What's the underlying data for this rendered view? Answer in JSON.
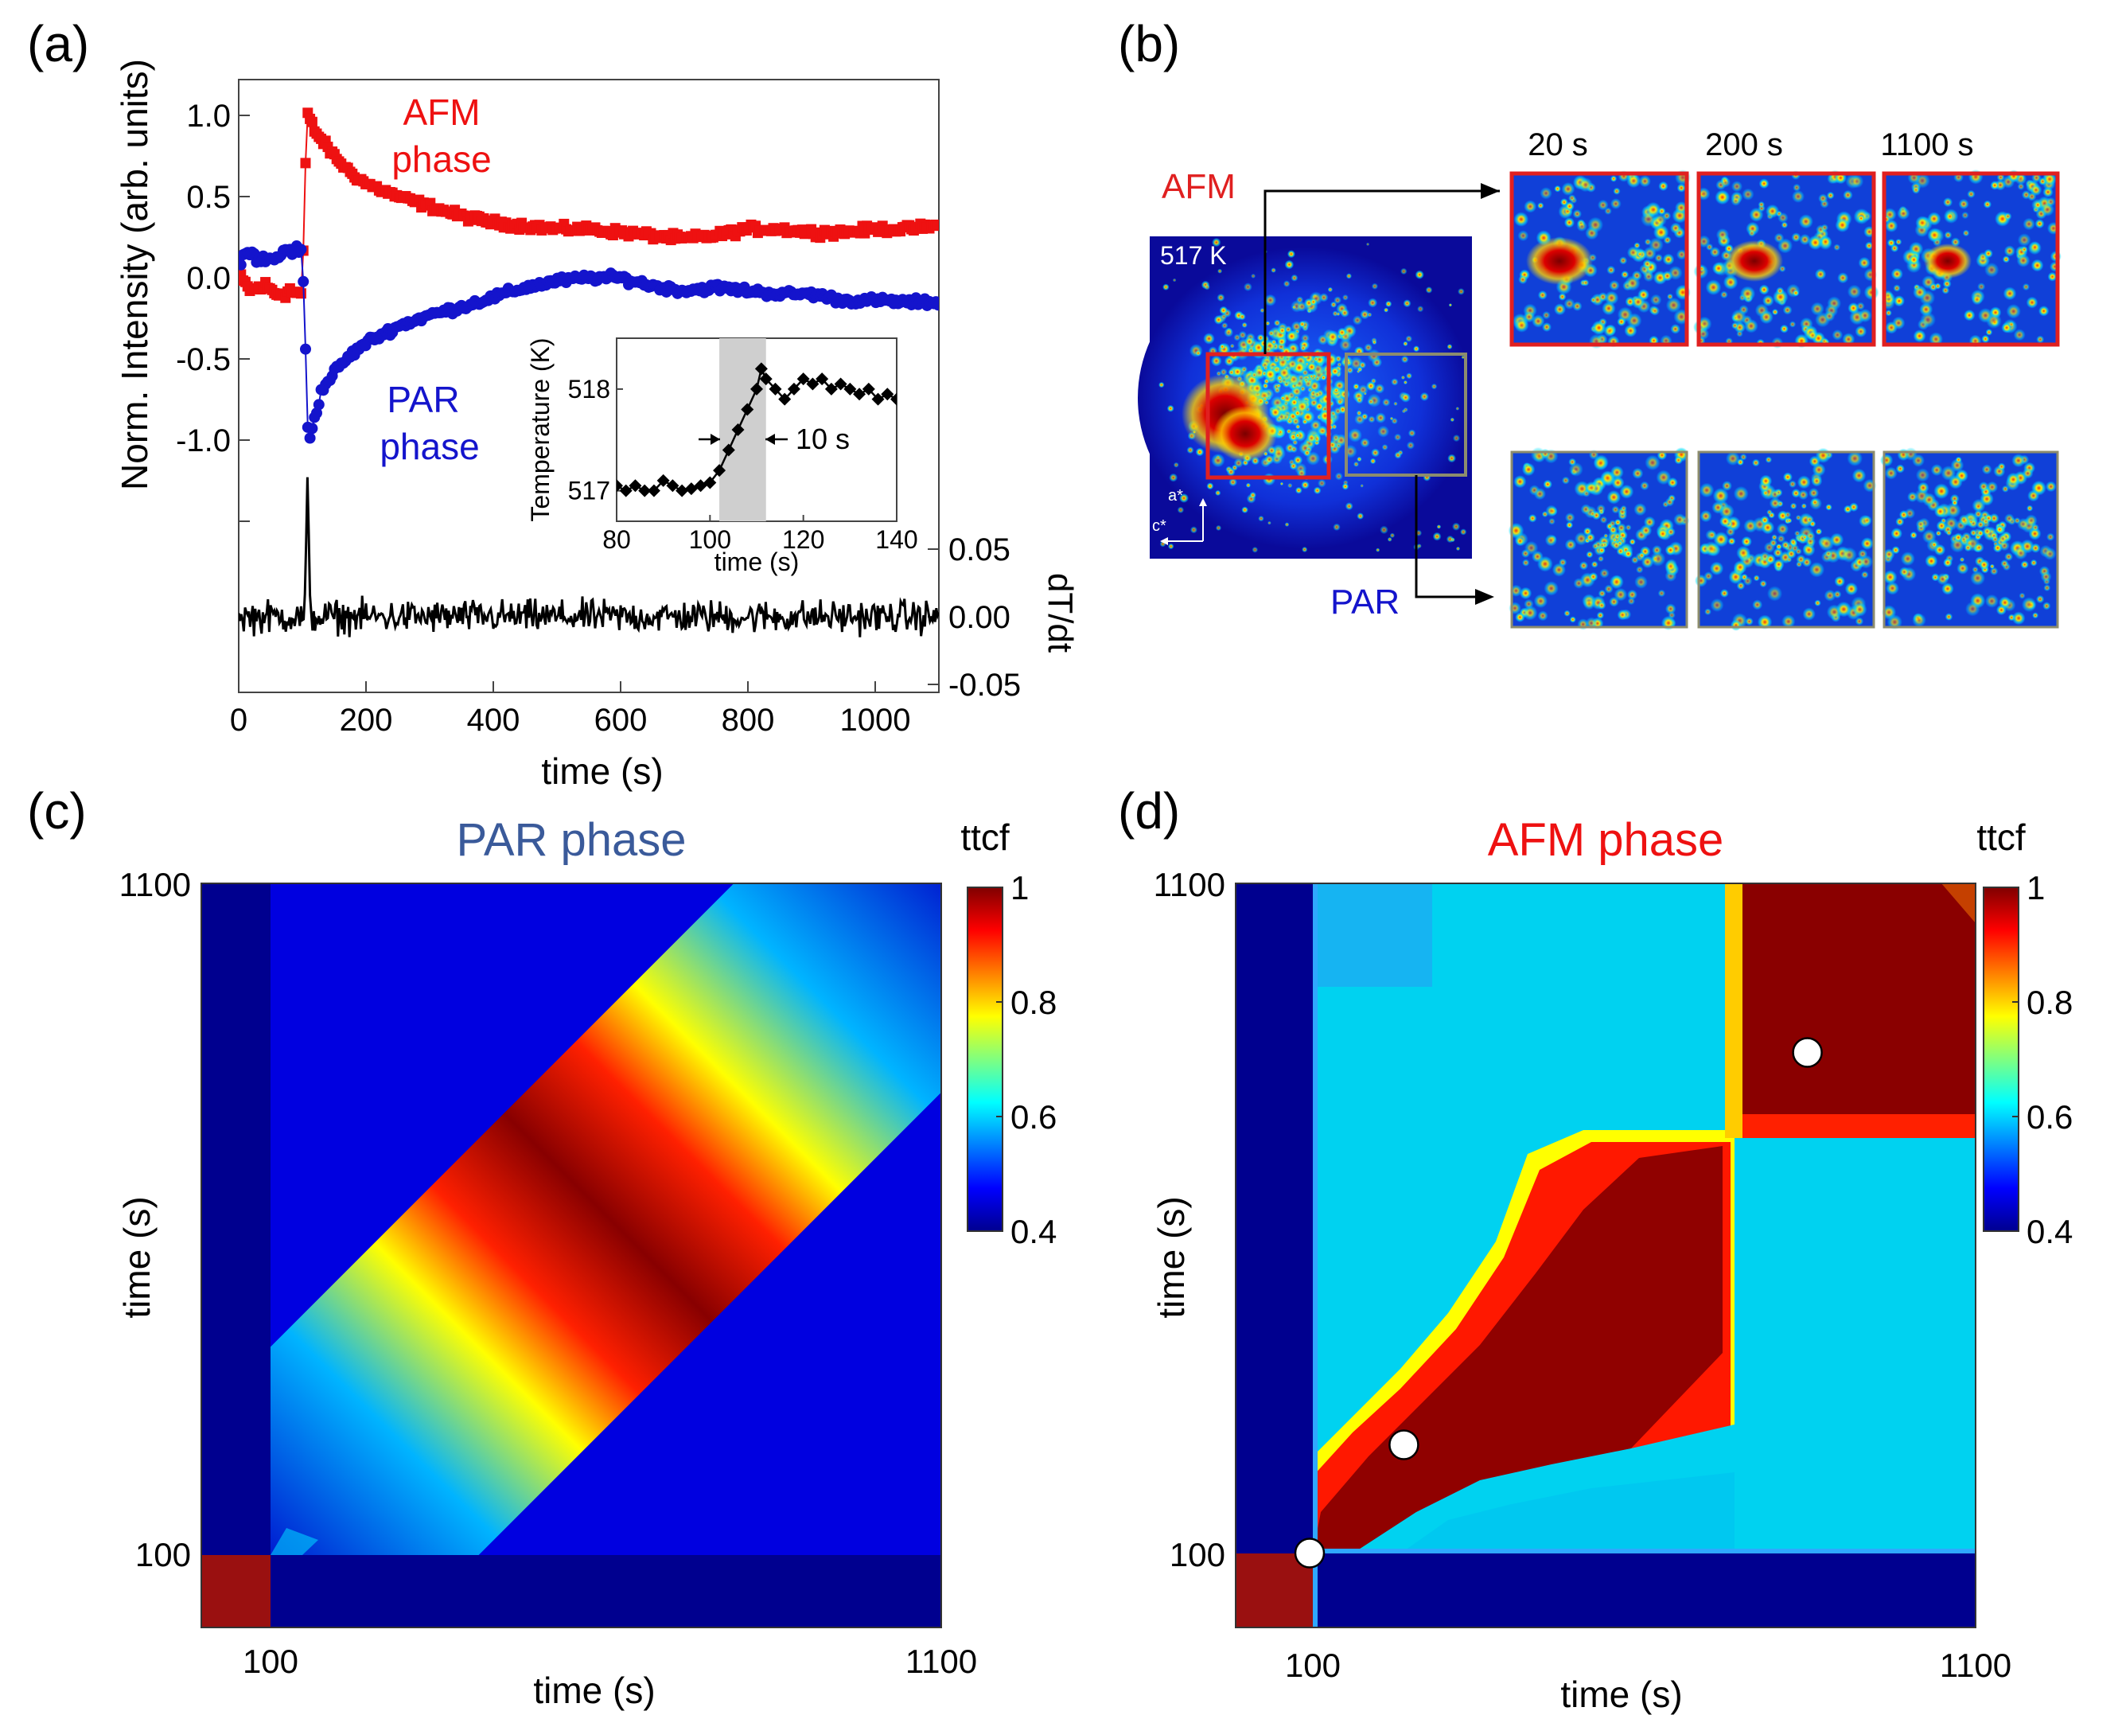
{
  "panel_labels": [
    "(a)",
    "(b)",
    "(c)",
    "(d)"
  ],
  "colors": {
    "afm": "#ee1111",
    "par": "#1414cc",
    "par_title": "#3a5a9a",
    "derivative": "#000000",
    "frame_afm": "#e02020",
    "frame_par": "#8c8c6e",
    "shade": "#cfcfcf"
  },
  "panel_b": {
    "afm_label": "AFM",
    "par_label": "PAR",
    "temperature_label": "517 K",
    "axis_a": "a*",
    "axis_c": "c*",
    "times": [
      "20 s",
      "200 s",
      "1100 s"
    ]
  },
  "chart_data": [
    {
      "id": "a-main",
      "type": "scatter",
      "title": "",
      "xlabel": "time (s)",
      "ylabel": "Norm. Intensity (arb. units)",
      "xlim": [
        0,
        1100
      ],
      "ylim": [
        -1.5,
        1.15
      ],
      "xticks": [
        "0",
        "200",
        "400",
        "600",
        "800",
        "1000"
      ],
      "yticks": [
        "1.0",
        "0.5",
        "0.0",
        "-0.5",
        "-1.0"
      ],
      "annotations": [
        "AFM",
        "phase",
        "PAR",
        "phase"
      ],
      "series": [
        {
          "name": "AFM phase",
          "marker": "square",
          "color": "#ee1111",
          "x": [
            0,
            20,
            40,
            60,
            80,
            100,
            104,
            108,
            112,
            120,
            130,
            150,
            175,
            200,
            250,
            300,
            350,
            400,
            450,
            500,
            550,
            600,
            650,
            700,
            750,
            800,
            850,
            900,
            950,
            1000,
            1050,
            1100
          ],
          "y": [
            0.0,
            -0.08,
            -0.05,
            -0.1,
            -0.08,
            -0.1,
            0.6,
            1.0,
            0.98,
            0.9,
            0.85,
            0.75,
            0.65,
            0.58,
            0.5,
            0.44,
            0.38,
            0.34,
            0.32,
            0.3,
            0.3,
            0.28,
            0.26,
            0.24,
            0.26,
            0.3,
            0.3,
            0.28,
            0.28,
            0.3,
            0.3,
            0.32
          ]
        },
        {
          "name": "PAR phase",
          "marker": "circle",
          "color": "#1414cc",
          "x": [
            0,
            20,
            40,
            60,
            80,
            100,
            104,
            108,
            112,
            120,
            130,
            150,
            175,
            200,
            250,
            300,
            350,
            400,
            450,
            500,
            550,
            600,
            650,
            700,
            750,
            800,
            850,
            900,
            950,
            1000,
            1050,
            1100
          ],
          "y": [
            0.12,
            0.15,
            0.1,
            0.12,
            0.18,
            0.15,
            -0.3,
            -0.9,
            -0.98,
            -0.85,
            -0.7,
            -0.58,
            -0.48,
            -0.4,
            -0.3,
            -0.23,
            -0.18,
            -0.12,
            -0.06,
            -0.02,
            0.0,
            0.0,
            -0.05,
            -0.08,
            -0.06,
            -0.08,
            -0.1,
            -0.1,
            -0.14,
            -0.14,
            -0.15,
            -0.15
          ]
        },
        {
          "name": "dT/dt",
          "marker": "line",
          "color": "#000000",
          "x": [
            0,
            100,
            108,
            116,
            1100
          ],
          "y": [
            0.0,
            0.0,
            0.1,
            0.0,
            0.0
          ]
        }
      ],
      "right_axis": {
        "label": "dT/dt",
        "ticks": [
          "0.05",
          "0.00",
          "-0.05"
        ]
      }
    },
    {
      "id": "a-inset",
      "type": "scatter",
      "xlabel": "time (s)",
      "ylabel": "Temperature (K)",
      "xlim": [
        80,
        140
      ],
      "ylim": [
        516.7,
        518.5
      ],
      "xticks": [
        "80",
        "100",
        "120",
        "140"
      ],
      "yticks": [
        "517",
        "518"
      ],
      "annotation": "10 s",
      "shaded_x": [
        102,
        112
      ],
      "x": [
        80,
        82,
        84,
        86,
        88,
        90,
        92,
        94,
        96,
        98,
        100,
        102,
        104,
        106,
        108,
        110,
        111,
        112,
        114,
        116,
        118,
        120,
        122,
        124,
        126,
        128,
        130,
        132,
        134,
        136,
        138,
        140
      ],
      "y": [
        517.05,
        517.0,
        517.05,
        517.0,
        517.0,
        517.1,
        517.05,
        517.0,
        517.02,
        517.05,
        517.08,
        517.2,
        517.4,
        517.6,
        517.8,
        518.0,
        518.2,
        518.1,
        518.0,
        517.9,
        518.0,
        518.1,
        518.05,
        518.1,
        518.0,
        518.05,
        518.0,
        517.95,
        518.0,
        517.9,
        517.95,
        517.9
      ]
    },
    {
      "id": "c",
      "type": "heatmap",
      "title": "PAR phase",
      "xlabel": "time (s)",
      "ylabel": "time (s)",
      "xticks": [
        "100",
        "1100"
      ],
      "yticks": [
        "1100",
        "100"
      ],
      "range": [
        0,
        1100
      ],
      "colorbar": {
        "label": "ttcf",
        "ticks": [
          "1",
          "0.8",
          "0.6",
          "0.4"
        ],
        "range": [
          0.4,
          1
        ]
      }
    },
    {
      "id": "d",
      "type": "heatmap",
      "title": "AFM phase",
      "xlabel": "time (s)",
      "ylabel": "time (s)",
      "xticks": [
        "100",
        "1100"
      ],
      "yticks": [
        "1100",
        "100"
      ],
      "range": [
        0,
        1100
      ],
      "markers": [
        [
          110,
          110
        ],
        [
          250,
          270
        ],
        [
          850,
          850
        ]
      ],
      "colorbar": {
        "label": "ttcf",
        "ticks": [
          "1",
          "0.8",
          "0.6",
          "0.4"
        ],
        "range": [
          0.4,
          1
        ]
      }
    }
  ]
}
